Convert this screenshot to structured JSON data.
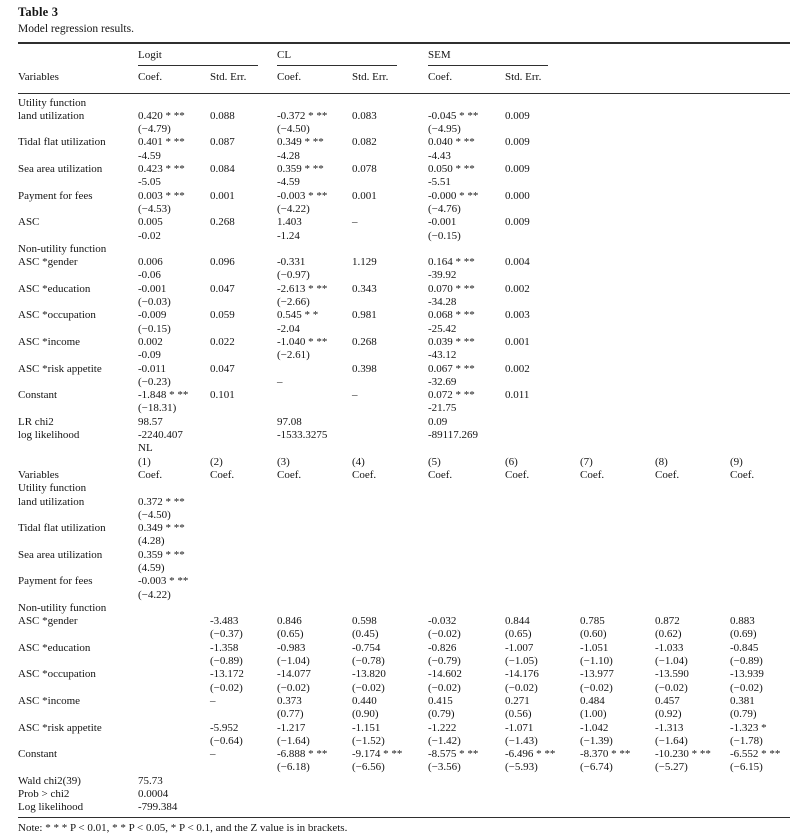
{
  "table": {
    "title": "Table 3",
    "subtitle": "Model regression results.",
    "note": "Note: * * * P < 0.01, * * P < 0.05, * P < 0.1, and the Z value is in brackets.",
    "panel1": {
      "groups": [
        {
          "label": "Logit"
        },
        {
          "label": "CL"
        },
        {
          "label": "SEM"
        }
      ],
      "variables_header": "Variables",
      "col_headers": [
        "Coef.",
        "Std. Err.",
        "Coef.",
        "Std. Err.",
        "Coef.",
        "Std. Err."
      ],
      "sections": [
        {
          "heading": "Utility function",
          "rows": [
            {
              "label": "land utilization",
              "cells": [
                [
                  "0.420 * **",
                  "(−4.79)"
                ],
                [
                  "0.088",
                  ""
                ],
                [
                  "-0.372 * **",
                  "(−4.50)"
                ],
                [
                  "0.083",
                  ""
                ],
                [
                  "-0.045 * **",
                  "(−4.95)"
                ],
                [
                  "0.009",
                  ""
                ]
              ]
            },
            {
              "label": "Tidal flat utilization",
              "cells": [
                [
                  "0.401 * **",
                  "-4.59"
                ],
                [
                  "0.087",
                  ""
                ],
                [
                  "0.349 * **",
                  "-4.28"
                ],
                [
                  "0.082",
                  ""
                ],
                [
                  "0.040 * **",
                  "-4.43"
                ],
                [
                  "0.009",
                  ""
                ]
              ]
            },
            {
              "label": "Sea area utilization",
              "cells": [
                [
                  "0.423 * **",
                  "-5.05"
                ],
                [
                  "0.084",
                  ""
                ],
                [
                  "0.359 * **",
                  "-4.59"
                ],
                [
                  "0.078",
                  ""
                ],
                [
                  "0.050 * **",
                  "-5.51"
                ],
                [
                  "0.009",
                  ""
                ]
              ]
            },
            {
              "label": "Payment for fees",
              "cells": [
                [
                  "0.003 * **",
                  "(−4.53)"
                ],
                [
                  "0.001",
                  ""
                ],
                [
                  "-0.003 * **",
                  "(−4.22)"
                ],
                [
                  "0.001",
                  ""
                ],
                [
                  "-0.000 * **",
                  "(−4.76)"
                ],
                [
                  "0.000",
                  ""
                ]
              ]
            },
            {
              "label": "ASC",
              "cells": [
                [
                  "0.005",
                  "-0.02"
                ],
                [
                  "0.268",
                  ""
                ],
                [
                  "1.403",
                  "-1.24"
                ],
                [
                  "–",
                  ""
                ],
                [
                  "-0.001",
                  "(−0.15)"
                ],
                [
                  "0.009",
                  ""
                ]
              ]
            }
          ]
        },
        {
          "heading": "Non-utility function",
          "rows": [
            {
              "label": "ASC *gender",
              "cells": [
                [
                  "0.006",
                  "-0.06"
                ],
                [
                  "0.096",
                  ""
                ],
                [
                  "-0.331",
                  "(−0.97)"
                ],
                [
                  "1.129",
                  ""
                ],
                [
                  "0.164 * **",
                  "-39.92"
                ],
                [
                  "0.004",
                  ""
                ]
              ]
            },
            {
              "label": "ASC *education",
              "cells": [
                [
                  "-0.001",
                  "(−0.03)"
                ],
                [
                  "0.047",
                  ""
                ],
                [
                  "-2.613 * **",
                  "(−2.66)"
                ],
                [
                  "0.343",
                  ""
                ],
                [
                  "0.070 * **",
                  "-34.28"
                ],
                [
                  "0.002",
                  ""
                ]
              ]
            },
            {
              "label": "ASC *occupation",
              "cells": [
                [
                  "-0.009",
                  "(−0.15)"
                ],
                [
                  "0.059",
                  ""
                ],
                [
                  "0.545 * *",
                  "-2.04"
                ],
                [
                  "0.981",
                  ""
                ],
                [
                  "0.068 * **",
                  "-25.42"
                ],
                [
                  "0.003",
                  ""
                ]
              ]
            },
            {
              "label": "ASC *income",
              "cells": [
                [
                  "0.002",
                  "-0.09"
                ],
                [
                  "0.022",
                  ""
                ],
                [
                  "-1.040 * **",
                  "(−2.61)"
                ],
                [
                  "0.268",
                  ""
                ],
                [
                  "0.039 * **",
                  "-43.12"
                ],
                [
                  "0.001",
                  ""
                ]
              ]
            },
            {
              "label": "ASC *risk appetite",
              "cells": [
                [
                  "-0.011",
                  "(−0.23)"
                ],
                [
                  "0.047",
                  ""
                ],
                [
                  "",
                  "–"
                ],
                [
                  "0.398",
                  ""
                ],
                [
                  "0.067 * **",
                  "-32.69"
                ],
                [
                  "0.002",
                  ""
                ]
              ]
            },
            {
              "label": "Constant",
              "cells": [
                [
                  "-1.848 * **",
                  "(−18.31)"
                ],
                [
                  "0.101",
                  ""
                ],
                [
                  "",
                  ""
                ],
                [
                  "–",
                  ""
                ],
                [
                  "0.072 * **",
                  "-21.75"
                ],
                [
                  "0.011",
                  ""
                ]
              ]
            }
          ]
        }
      ],
      "stats": [
        {
          "label": "LR chi2",
          "values": [
            "98.57",
            "",
            "97.08",
            "",
            "0.09",
            ""
          ]
        },
        {
          "label": "log likelihood",
          "values": [
            "-2240.407",
            "",
            "-1533.3275",
            "",
            "-89117.269",
            ""
          ]
        }
      ]
    },
    "panel2": {
      "model_label": "NL",
      "numbers": [
        "(1)",
        "(2)",
        "(3)",
        "(4)",
        "(5)",
        "(6)",
        "(7)",
        "(8)",
        "(9)"
      ],
      "variables_header": "Variables",
      "col_headers": [
        "Coef.",
        "Coef.",
        "Coef.",
        "Coef.",
        "Coef.",
        "Coef.",
        "Coef.",
        "Coef.",
        "Coef."
      ],
      "sections": [
        {
          "heading": "Utility function",
          "rows": [
            {
              "label": "land utilization",
              "cells": [
                [
                  "0.372 * **",
                  "(−4.50)"
                ],
                [
                  "",
                  ""
                ],
                [
                  "",
                  ""
                ],
                [
                  "",
                  ""
                ],
                [
                  "",
                  ""
                ],
                [
                  "",
                  ""
                ],
                [
                  "",
                  ""
                ],
                [
                  "",
                  ""
                ],
                [
                  "",
                  ""
                ]
              ]
            },
            {
              "label": "Tidal flat utilization",
              "cells": [
                [
                  "0.349 * **",
                  "(4.28)"
                ],
                [
                  "",
                  ""
                ],
                [
                  "",
                  ""
                ],
                [
                  "",
                  ""
                ],
                [
                  "",
                  ""
                ],
                [
                  "",
                  ""
                ],
                [
                  "",
                  ""
                ],
                [
                  "",
                  ""
                ],
                [
                  "",
                  ""
                ]
              ]
            },
            {
              "label": "Sea area utilization",
              "cells": [
                [
                  "0.359 * **",
                  "(4.59)"
                ],
                [
                  "",
                  ""
                ],
                [
                  "",
                  ""
                ],
                [
                  "",
                  ""
                ],
                [
                  "",
                  ""
                ],
                [
                  "",
                  ""
                ],
                [
                  "",
                  ""
                ],
                [
                  "",
                  ""
                ],
                [
                  "",
                  ""
                ]
              ]
            },
            {
              "label": "Payment for fees",
              "cells": [
                [
                  "-0.003 * **",
                  "(−4.22)"
                ],
                [
                  "",
                  ""
                ],
                [
                  "",
                  ""
                ],
                [
                  "",
                  ""
                ],
                [
                  "",
                  ""
                ],
                [
                  "",
                  ""
                ],
                [
                  "",
                  ""
                ],
                [
                  "",
                  ""
                ],
                [
                  "",
                  ""
                ]
              ]
            }
          ]
        },
        {
          "heading": "Non-utility function",
          "rows": [
            {
              "label": "ASC *gender",
              "cells": [
                [
                  "",
                  ""
                ],
                [
                  "-3.483",
                  "(−0.37)"
                ],
                [
                  "0.846",
                  "(0.65)"
                ],
                [
                  "0.598",
                  "(0.45)"
                ],
                [
                  "-0.032",
                  "(−0.02)"
                ],
                [
                  "0.844",
                  "(0.65)"
                ],
                [
                  "0.785",
                  "(0.60)"
                ],
                [
                  "0.872",
                  "(0.62)"
                ],
                [
                  "0.883",
                  "(0.69)"
                ]
              ]
            },
            {
              "label": "ASC *education",
              "cells": [
                [
                  "",
                  ""
                ],
                [
                  "-1.358",
                  "(−0.89)"
                ],
                [
                  "-0.983",
                  "(−1.04)"
                ],
                [
                  "-0.754",
                  "(−0.78)"
                ],
                [
                  "-0.826",
                  "(−0.79)"
                ],
                [
                  "-1.007",
                  "(−1.05)"
                ],
                [
                  "-1.051",
                  "(−1.10)"
                ],
                [
                  "-1.033",
                  "(−1.04)"
                ],
                [
                  "-0.845",
                  "(−0.89)"
                ]
              ]
            },
            {
              "label": "ASC *occupation",
              "cells": [
                [
                  "",
                  ""
                ],
                [
                  "-13.172",
                  "(−0.02)"
                ],
                [
                  "-14.077",
                  "(−0.02)"
                ],
                [
                  "-13.820",
                  "(−0.02)"
                ],
                [
                  "-14.602",
                  "(−0.02)"
                ],
                [
                  "-14.176",
                  "(−0.02)"
                ],
                [
                  "-13.977",
                  "(−0.02)"
                ],
                [
                  "-13.590",
                  "(−0.02)"
                ],
                [
                  "-13.939",
                  "(−0.02)"
                ]
              ]
            },
            {
              "label": "ASC *income",
              "cells": [
                [
                  "",
                  ""
                ],
                [
                  "–",
                  ""
                ],
                [
                  "0.373",
                  "(0.77)"
                ],
                [
                  "0.440",
                  "(0.90)"
                ],
                [
                  "0.415",
                  "(0.79)"
                ],
                [
                  "0.271",
                  "(0.56)"
                ],
                [
                  "0.484",
                  "(1.00)"
                ],
                [
                  "0.457",
                  "(0.92)"
                ],
                [
                  "0.381",
                  "(0.79)"
                ]
              ]
            },
            {
              "label": "ASC *risk appetite",
              "cells": [
                [
                  "",
                  ""
                ],
                [
                  "-5.952",
                  "(−0.64)"
                ],
                [
                  "-1.217",
                  "(−1.64)"
                ],
                [
                  "-1.151",
                  "(−1.52)"
                ],
                [
                  "-1.222",
                  "(−1.42)"
                ],
                [
                  "-1.071",
                  "(−1.43)"
                ],
                [
                  "-1.042",
                  "(−1.39)"
                ],
                [
                  "-1.313",
                  "(−1.64)"
                ],
                [
                  "-1.323 *",
                  "(−1.78)"
                ]
              ]
            },
            {
              "label": "Constant",
              "cells": [
                [
                  "",
                  ""
                ],
                [
                  "–",
                  ""
                ],
                [
                  "-6.888 * **",
                  "(−6.18)"
                ],
                [
                  "-9.174 * **",
                  "(−6.56)"
                ],
                [
                  "-8.575 * **",
                  "(−3.56)"
                ],
                [
                  "-6.496 * **",
                  "(−5.93)"
                ],
                [
                  "-8.370 * **",
                  "(−6.74)"
                ],
                [
                  "-10.230 * **",
                  "(−5.27)"
                ],
                [
                  "-6.552 * **",
                  "(−6.15)"
                ]
              ]
            }
          ]
        }
      ],
      "stats": [
        {
          "label": "Wald chi2(39)",
          "values": [
            "75.73",
            "",
            "",
            "",
            "",
            "",
            "",
            "",
            ""
          ]
        },
        {
          "label": "Prob > chi2",
          "values": [
            "0.0004",
            "",
            "",
            "",
            "",
            "",
            "",
            "",
            ""
          ]
        },
        {
          "label": "Log likelihood",
          "values": [
            "-799.384",
            "",
            "",
            "",
            "",
            "",
            "",
            "",
            ""
          ]
        }
      ]
    }
  }
}
